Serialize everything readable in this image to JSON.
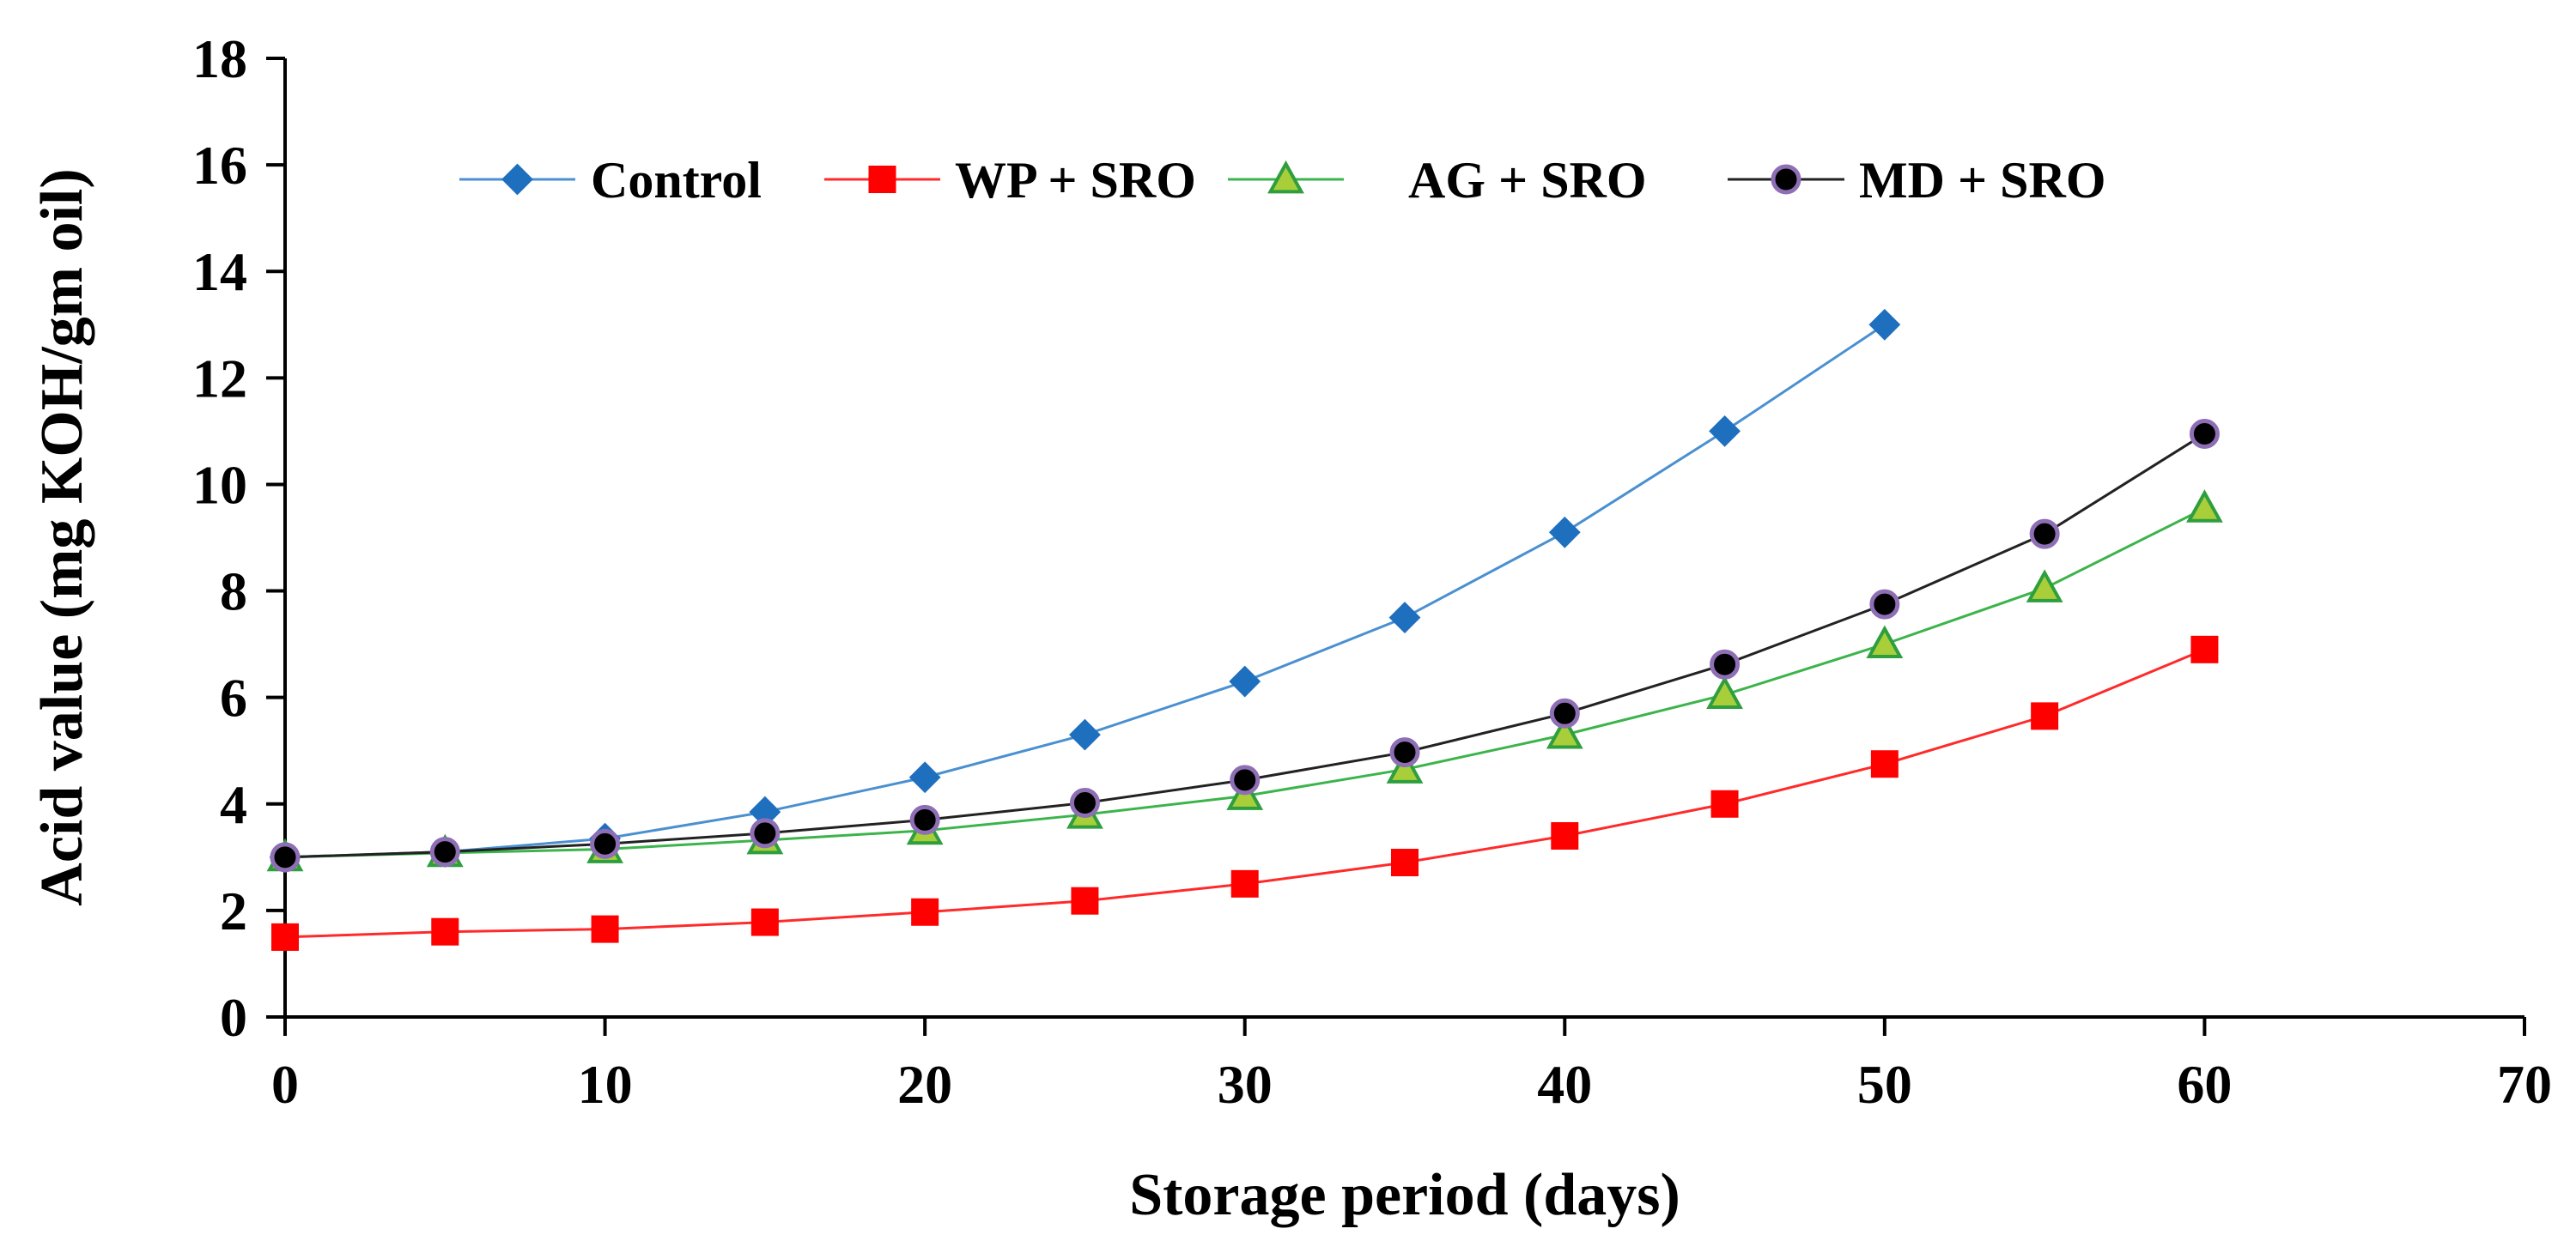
{
  "chart_data": {
    "type": "line",
    "title": "",
    "xlabel": "Storage period (days)",
    "ylabel": "Acid value (mg KOH/gm oil)",
    "xlim": [
      0,
      70
    ],
    "ylim": [
      0,
      18
    ],
    "x_ticks": [
      0,
      10,
      20,
      30,
      40,
      50,
      60,
      70
    ],
    "y_ticks": [
      0,
      2,
      4,
      6,
      8,
      10,
      12,
      14,
      16,
      18
    ],
    "grid": false,
    "legend_position": "top",
    "series": [
      {
        "name": "Control",
        "marker": "diamond",
        "color": "#4a90d0",
        "marker_fill": "#1f6fbf",
        "marker_stroke": "#1f6fbf",
        "x": [
          0,
          5,
          10,
          15,
          20,
          25,
          30,
          35,
          40,
          45,
          50
        ],
        "y": [
          3.0,
          3.1,
          3.35,
          3.85,
          4.5,
          5.3,
          6.3,
          7.5,
          9.1,
          11.0,
          13.0
        ]
      },
      {
        "name": "WP + SRO",
        "marker": "square",
        "color": "#ff2a2a",
        "marker_fill": "#ff0000",
        "marker_stroke": "#ff0000",
        "x": [
          0,
          5,
          10,
          15,
          20,
          25,
          30,
          35,
          40,
          45,
          50,
          55,
          60
        ],
        "y": [
          1.5,
          1.6,
          1.65,
          1.78,
          1.97,
          2.18,
          2.5,
          2.9,
          3.4,
          4.0,
          4.75,
          5.65,
          6.9
        ]
      },
      {
        "name": "AG + SRO",
        "marker": "triangle",
        "color": "#3cb44b",
        "marker_fill": "#a8cf3a",
        "marker_stroke": "#2e9e3e",
        "x": [
          0,
          5,
          10,
          15,
          20,
          25,
          30,
          35,
          40,
          45,
          50,
          55,
          60
        ],
        "y": [
          3.0,
          3.08,
          3.15,
          3.32,
          3.5,
          3.8,
          4.15,
          4.65,
          5.3,
          6.05,
          7.0,
          8.05,
          9.55
        ]
      },
      {
        "name": "MD + SRO",
        "marker": "circle",
        "color": "#222222",
        "marker_fill": "#000000",
        "marker_stroke": "#8e6fb5",
        "x": [
          0,
          5,
          10,
          15,
          20,
          25,
          30,
          35,
          40,
          45,
          50,
          55,
          60
        ],
        "y": [
          3.0,
          3.1,
          3.25,
          3.45,
          3.7,
          4.02,
          4.45,
          4.97,
          5.7,
          6.62,
          7.75,
          9.07,
          10.95
        ]
      }
    ]
  }
}
